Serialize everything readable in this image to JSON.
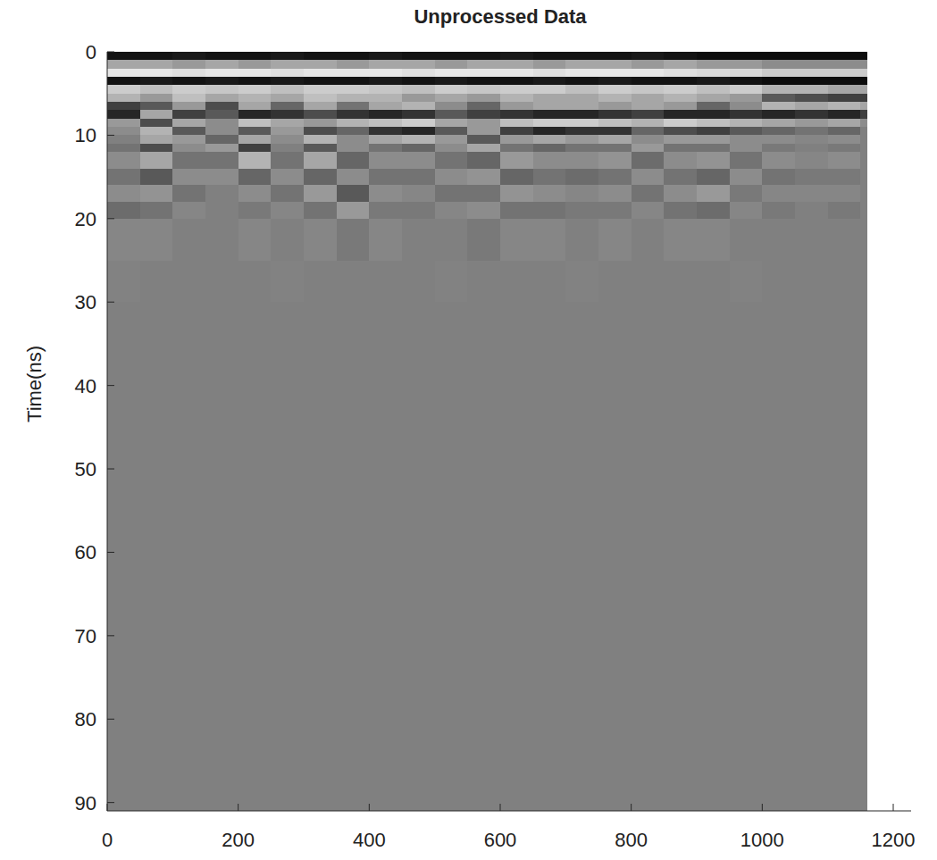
{
  "chart_data": {
    "type": "heatmap",
    "title": "Unprocessed Data",
    "y_label": "Time(ns)",
    "xlim": [
      0,
      1200
    ],
    "ylim": [
      0,
      91
    ],
    "xticks": [
      0,
      200,
      400,
      600,
      800,
      1000,
      1200
    ],
    "yticks": [
      0,
      10,
      20,
      30,
      40,
      50,
      60,
      70,
      80,
      90
    ],
    "grid": false,
    "value_range": [
      -1,
      1
    ],
    "x_edges": [
      0,
      50,
      100,
      150,
      200,
      250,
      300,
      350,
      400,
      450,
      500,
      550,
      600,
      650,
      700,
      750,
      800,
      850,
      900,
      950,
      1000,
      1050,
      1100,
      1150,
      1160
    ],
    "y_edges": [
      0,
      1,
      2,
      3,
      4,
      5,
      6,
      7,
      8,
      9,
      10,
      11,
      12,
      14,
      16,
      18,
      20,
      25,
      30,
      40,
      60,
      91
    ],
    "cells": [
      [
        -0.85,
        -0.85,
        -0.8,
        -0.85,
        -0.85,
        -0.8,
        -0.85,
        -0.85,
        -0.8,
        -0.85,
        -0.85,
        -0.85,
        -0.8,
        -0.85,
        -0.85,
        -0.85,
        -0.8,
        -0.85,
        -0.9,
        -0.9,
        -0.9,
        -0.9,
        -0.9,
        -0.9
      ],
      [
        0.3,
        0.3,
        0.2,
        0.3,
        0.2,
        0.3,
        0.3,
        0.2,
        0.3,
        0.3,
        0.2,
        0.3,
        0.3,
        0.2,
        0.3,
        0.3,
        0.2,
        0.3,
        0.2,
        0.2,
        0.1,
        0.1,
        0.1,
        0.1
      ],
      [
        0.8,
        0.8,
        0.75,
        0.8,
        0.8,
        0.75,
        0.8,
        0.8,
        0.8,
        0.75,
        0.8,
        0.8,
        0.8,
        0.75,
        0.8,
        0.8,
        0.8,
        0.75,
        0.7,
        0.7,
        0.6,
        0.6,
        0.6,
        0.6
      ],
      [
        -0.85,
        -0.8,
        -0.85,
        -0.8,
        -0.85,
        -0.8,
        -0.85,
        -0.85,
        -0.8,
        -0.85,
        -0.8,
        -0.85,
        -0.85,
        -0.8,
        -0.85,
        -0.8,
        -0.85,
        -0.85,
        -0.8,
        -0.85,
        -0.9,
        -0.9,
        -0.9,
        -0.9
      ],
      [
        0.6,
        0.5,
        0.6,
        0.55,
        0.6,
        0.5,
        0.6,
        0.6,
        0.55,
        0.5,
        0.6,
        0.55,
        0.6,
        0.6,
        0.5,
        0.6,
        0.55,
        0.6,
        0.5,
        0.6,
        0.4,
        0.4,
        0.3,
        0.3
      ],
      [
        0.4,
        0.2,
        0.5,
        0.3,
        0.4,
        0.3,
        0.5,
        0.4,
        0.4,
        0.2,
        0.3,
        0.2,
        0.4,
        0.3,
        0.3,
        0.4,
        0.3,
        0.4,
        0.3,
        0.2,
        -0.3,
        -0.4,
        -0.5,
        -0.5
      ],
      [
        -0.5,
        -0.3,
        0.2,
        -0.4,
        0.3,
        -0.2,
        0.3,
        -0.1,
        0.3,
        0.4,
        0.1,
        -0.2,
        0.2,
        0.3,
        0.3,
        0.2,
        0.3,
        0.2,
        -0.2,
        0.1,
        0.4,
        0.3,
        0.4,
        0.3
      ],
      [
        -0.7,
        0.3,
        -0.5,
        -0.3,
        -0.7,
        -0.6,
        -0.4,
        -0.6,
        -0.7,
        -0.6,
        -0.3,
        -0.5,
        -0.6,
        -0.7,
        -0.7,
        -0.6,
        -0.5,
        -0.7,
        -0.7,
        -0.6,
        -0.7,
        -0.6,
        -0.7,
        -0.5
      ],
      [
        0.2,
        -0.4,
        0.3,
        0.1,
        0.5,
        0.3,
        0.2,
        0.4,
        0.5,
        0.6,
        0.3,
        0.2,
        0.5,
        0.6,
        0.6,
        0.5,
        0.4,
        0.6,
        0.5,
        0.4,
        0.3,
        0.2,
        0.3,
        0.1
      ],
      [
        0.1,
        0.4,
        -0.3,
        0.1,
        -0.3,
        0.2,
        -0.4,
        -0.2,
        -0.6,
        -0.7,
        -0.3,
        0.2,
        -0.5,
        -0.7,
        -0.6,
        -0.6,
        -0.2,
        -0.4,
        -0.5,
        -0.3,
        -0.2,
        -0.1,
        -0.2,
        0
      ],
      [
        0,
        0.3,
        0.2,
        -0.2,
        0.3,
        0.1,
        0.4,
        0.1,
        0.3,
        0.4,
        0.2,
        -0.3,
        0.2,
        0.3,
        0.2,
        0.3,
        0.1,
        0.2,
        0.2,
        0.1,
        0.1,
        0.05,
        0.1,
        0
      ],
      [
        -0.1,
        -0.4,
        0.1,
        0.2,
        -0.5,
        0,
        -0.3,
        0.1,
        -0.1,
        -0.2,
        0.1,
        0.3,
        -0.1,
        -0.2,
        -0.1,
        -0.1,
        0.2,
        -0.1,
        -0.1,
        0.1,
        -0.05,
        0,
        -0.05,
        0
      ],
      [
        0.1,
        0.3,
        -0.1,
        -0.1,
        0.4,
        -0.1,
        0.3,
        -0.2,
        0.1,
        0.1,
        -0.1,
        -0.2,
        0.2,
        0.1,
        0.1,
        0.15,
        -0.15,
        0.1,
        0.15,
        -0.1,
        0.1,
        0.05,
        0.1,
        0
      ],
      [
        -0.1,
        -0.3,
        0.1,
        0.1,
        -0.2,
        0.1,
        -0.2,
        0.1,
        -0.1,
        -0.1,
        0.1,
        0.15,
        -0.2,
        -0.1,
        -0.15,
        -0.1,
        0.1,
        -0.1,
        -0.2,
        0.1,
        -0.1,
        -0.05,
        -0.05,
        0
      ],
      [
        0.1,
        0.15,
        -0.1,
        0,
        0.1,
        -0.1,
        0.2,
        -0.3,
        0.1,
        0.05,
        -0.1,
        -0.1,
        0.15,
        0.1,
        0.05,
        0.1,
        -0.1,
        0.1,
        0.2,
        -0.05,
        0.05,
        0.05,
        0.05,
        0
      ],
      [
        -0.15,
        -0.1,
        0.05,
        0,
        -0.05,
        0.05,
        -0.1,
        0.2,
        -0.05,
        -0.05,
        0.05,
        0.1,
        -0.1,
        -0.1,
        -0.05,
        -0.05,
        0.05,
        -0.1,
        -0.15,
        0.05,
        -0.05,
        0,
        -0.05,
        0
      ],
      [
        0.05,
        0.05,
        0,
        0,
        0.05,
        0,
        0.05,
        -0.05,
        0.05,
        0,
        0,
        -0.05,
        0.05,
        0.05,
        0,
        0.05,
        0,
        0.05,
        0.05,
        0,
        0,
        0,
        0,
        0
      ],
      [
        0.02,
        0,
        0,
        0,
        0,
        0.02,
        0,
        0,
        0,
        0,
        0.02,
        0,
        0,
        0,
        0.02,
        0,
        0,
        0,
        0,
        0.02,
        0,
        0,
        0,
        0
      ],
      [
        0,
        0,
        0,
        0,
        0,
        0,
        0,
        0,
        0,
        0,
        0,
        0,
        0,
        0,
        0,
        0,
        0,
        0,
        0,
        0,
        0,
        0,
        0,
        0
      ],
      [
        0,
        0,
        0,
        0,
        0,
        0,
        0,
        0,
        0,
        0,
        0,
        0,
        0,
        0,
        0,
        0,
        0,
        0,
        0,
        0,
        0,
        0,
        0,
        0
      ],
      [
        0,
        0,
        0,
        0,
        0,
        0,
        0,
        0,
        0,
        0,
        0,
        0,
        0,
        0,
        0,
        0,
        0,
        0,
        0,
        0,
        0,
        0,
        0,
        0
      ]
    ]
  }
}
